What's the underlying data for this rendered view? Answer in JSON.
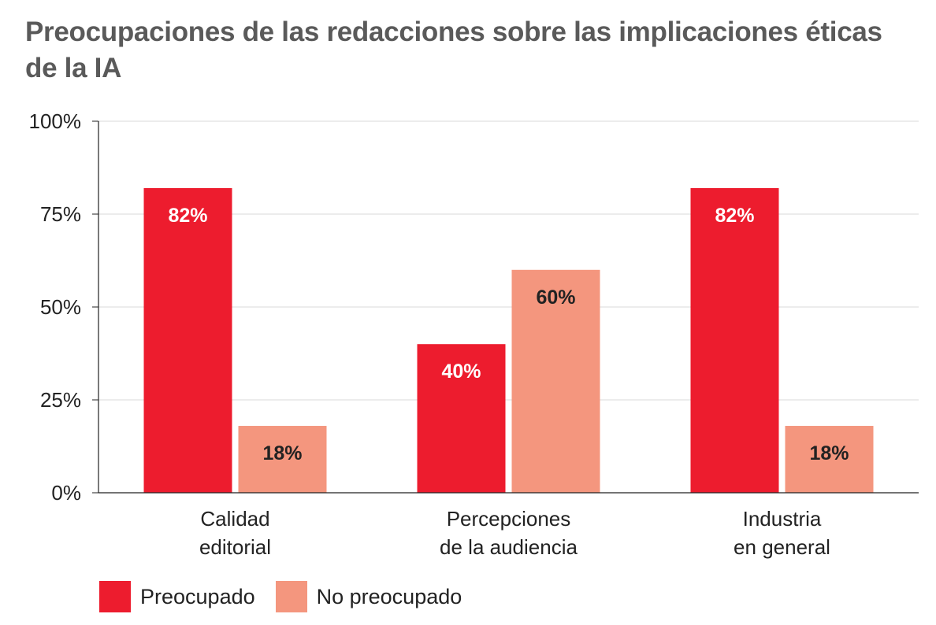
{
  "title": "Preocupaciones de las redacciones sobre las implicaciones éticas de la IA",
  "chart_data": {
    "type": "bar",
    "title": "Preocupaciones de las redacciones sobre las implicaciones éticas de la IA",
    "xlabel": "",
    "ylabel": "",
    "categories": [
      [
        "Calidad",
        "editorial"
      ],
      [
        "Percepciones",
        "de la audiencia"
      ],
      [
        "Industria",
        "en general"
      ]
    ],
    "series": [
      {
        "name": "Preocupado",
        "values": [
          82,
          40,
          82
        ],
        "labels": [
          "82%",
          "40%",
          "82%"
        ],
        "color": "#ed1c2e",
        "label_color": "#ffffff"
      },
      {
        "name": "No preocupado",
        "values": [
          18,
          60,
          18
        ],
        "labels": [
          "18%",
          "60%",
          "18%"
        ],
        "color": "#f4967e",
        "label_color": "#222222"
      }
    ],
    "ylim": [
      0,
      100
    ],
    "yticks": [
      0,
      25,
      50,
      75,
      100
    ],
    "ytick_labels": [
      "0%",
      "25%",
      "50%",
      "75%",
      "100%"
    ],
    "grid": true,
    "legend_position": "bottom-left"
  }
}
